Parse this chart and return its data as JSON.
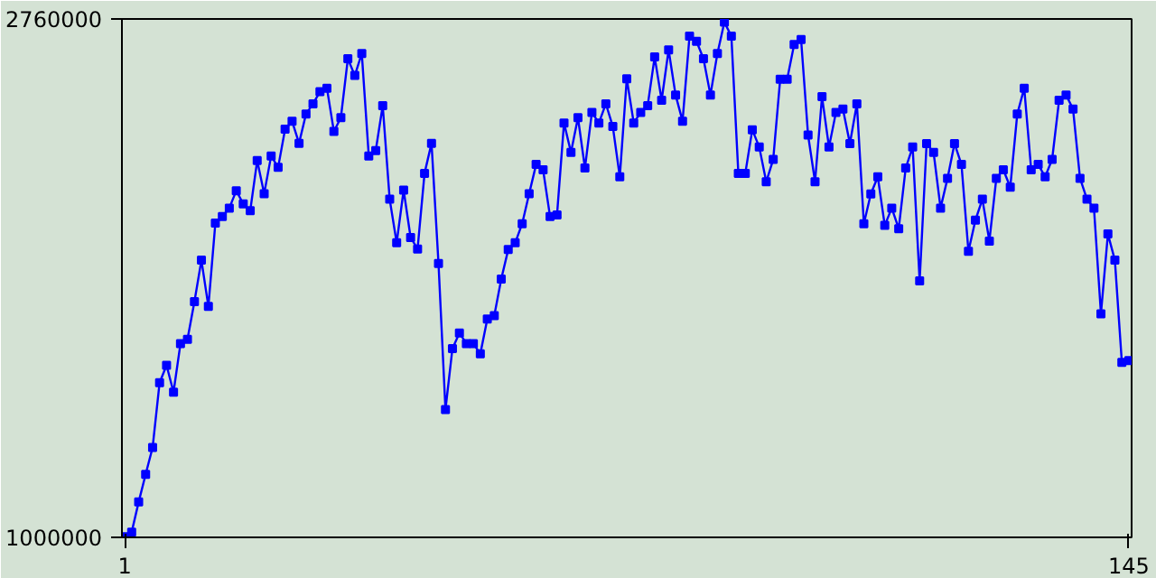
{
  "chart_data": {
    "type": "line",
    "x": [
      1,
      2,
      3,
      4,
      5,
      6,
      7,
      8,
      9,
      10,
      11,
      12,
      13,
      14,
      15,
      16,
      17,
      18,
      19,
      20,
      21,
      22,
      23,
      24,
      25,
      26,
      27,
      28,
      29,
      30,
      31,
      32,
      33,
      34,
      35,
      36,
      37,
      38,
      39,
      40,
      41,
      42,
      43,
      44,
      45,
      46,
      47,
      48,
      49,
      50,
      51,
      52,
      53,
      54,
      55,
      56,
      57,
      58,
      59,
      60,
      61,
      62,
      63,
      64,
      65,
      66,
      67,
      68,
      69,
      70,
      71,
      72,
      73,
      74,
      75,
      76,
      77,
      78,
      79,
      80,
      81,
      82,
      83,
      84,
      85,
      86,
      87,
      88,
      89,
      90,
      91,
      92,
      93,
      94,
      95,
      96,
      97,
      98,
      99,
      100,
      101,
      102,
      103,
      104,
      105,
      106,
      107,
      108,
      109,
      110,
      111,
      112,
      113,
      114,
      115,
      116,
      117,
      118,
      119,
      120,
      121,
      122,
      123,
      124,
      125,
      126,
      127,
      128,
      129,
      130,
      131,
      132,
      133,
      134,
      135,
      136,
      137,
      138,
      139,
      140,
      141,
      142,
      143,
      144,
      145
    ],
    "series": [
      {
        "color": "#0000ff",
        "values": [
          1002000,
          1018000,
          1120000,
          1214000,
          1305000,
          1525000,
          1584000,
          1493000,
          1658000,
          1672000,
          1800000,
          1941000,
          1784000,
          2067000,
          2089000,
          2118000,
          2177000,
          2132000,
          2109000,
          2279000,
          2167000,
          2295000,
          2256000,
          2386000,
          2413000,
          2338000,
          2437000,
          2472000,
          2513000,
          2525000,
          2378000,
          2425000,
          2625000,
          2568000,
          2643000,
          2295000,
          2313000,
          2466000,
          2148000,
          2000000,
          2179000,
          2018000,
          1979000,
          2236000,
          2338000,
          1930000,
          1434000,
          1641000,
          1694000,
          1658000,
          1658000,
          1623000,
          1741000,
          1753000,
          1877000,
          1977000,
          2000000,
          2065000,
          2167000,
          2266000,
          2248000,
          2089000,
          2095000,
          2407000,
          2307000,
          2425000,
          2254000,
          2443000,
          2407000,
          2472000,
          2395000,
          2224000,
          2557000,
          2407000,
          2443000,
          2466000,
          2631000,
          2484000,
          2655000,
          2502000,
          2413000,
          2702000,
          2684000,
          2625000,
          2502000,
          2643000,
          2749000,
          2702000,
          2236000,
          2236000,
          2384000,
          2325000,
          2207000,
          2283000,
          2555000,
          2555000,
          2673000,
          2690000,
          2366000,
          2207000,
          2496000,
          2325000,
          2443000,
          2454000,
          2337000,
          2472000,
          2065000,
          2166000,
          2224000,
          2059000,
          2118000,
          2048000,
          2254000,
          2325000,
          1871000,
          2337000,
          2307000,
          2118000,
          2219000,
          2337000,
          2266000,
          1971000,
          2077000,
          2148000,
          2006000,
          2219000,
          2248000,
          2189000,
          2437000,
          2525000,
          2248000,
          2266000,
          2224000,
          2283000,
          2484000,
          2502000,
          2454000,
          2219000,
          2148000,
          2118000,
          1759000,
          2030000,
          1941000,
          1594000,
          1600000
        ]
      }
    ],
    "xlim": [
      0.6,
      145.4
    ],
    "ylim": [
      1000000,
      2760000
    ],
    "xticks": [
      1,
      145
    ],
    "yticks": [
      1000000,
      2760000
    ],
    "grid": false,
    "marker": "square",
    "line_style": "solid"
  }
}
